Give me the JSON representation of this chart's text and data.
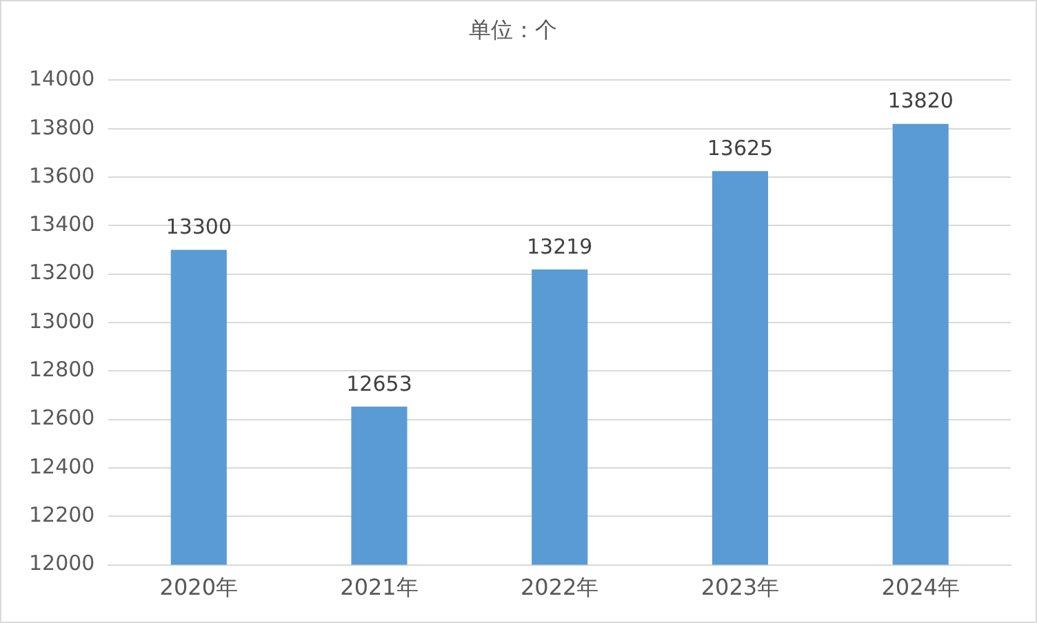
{
  "chart_data": {
    "type": "bar",
    "title": "单位：个",
    "categories": [
      "2020年",
      "2021年",
      "2022年",
      "2023年",
      "2024年"
    ],
    "values": [
      13300,
      12653,
      13219,
      13625,
      13820
    ],
    "color": "#5b9bd5",
    "ylim": [
      12000,
      14000
    ],
    "yticks": [
      12000,
      12200,
      12400,
      12600,
      12800,
      13000,
      13200,
      13400,
      13600,
      13800,
      14000
    ],
    "grid": "y",
    "legend": false,
    "data_labels": true
  }
}
